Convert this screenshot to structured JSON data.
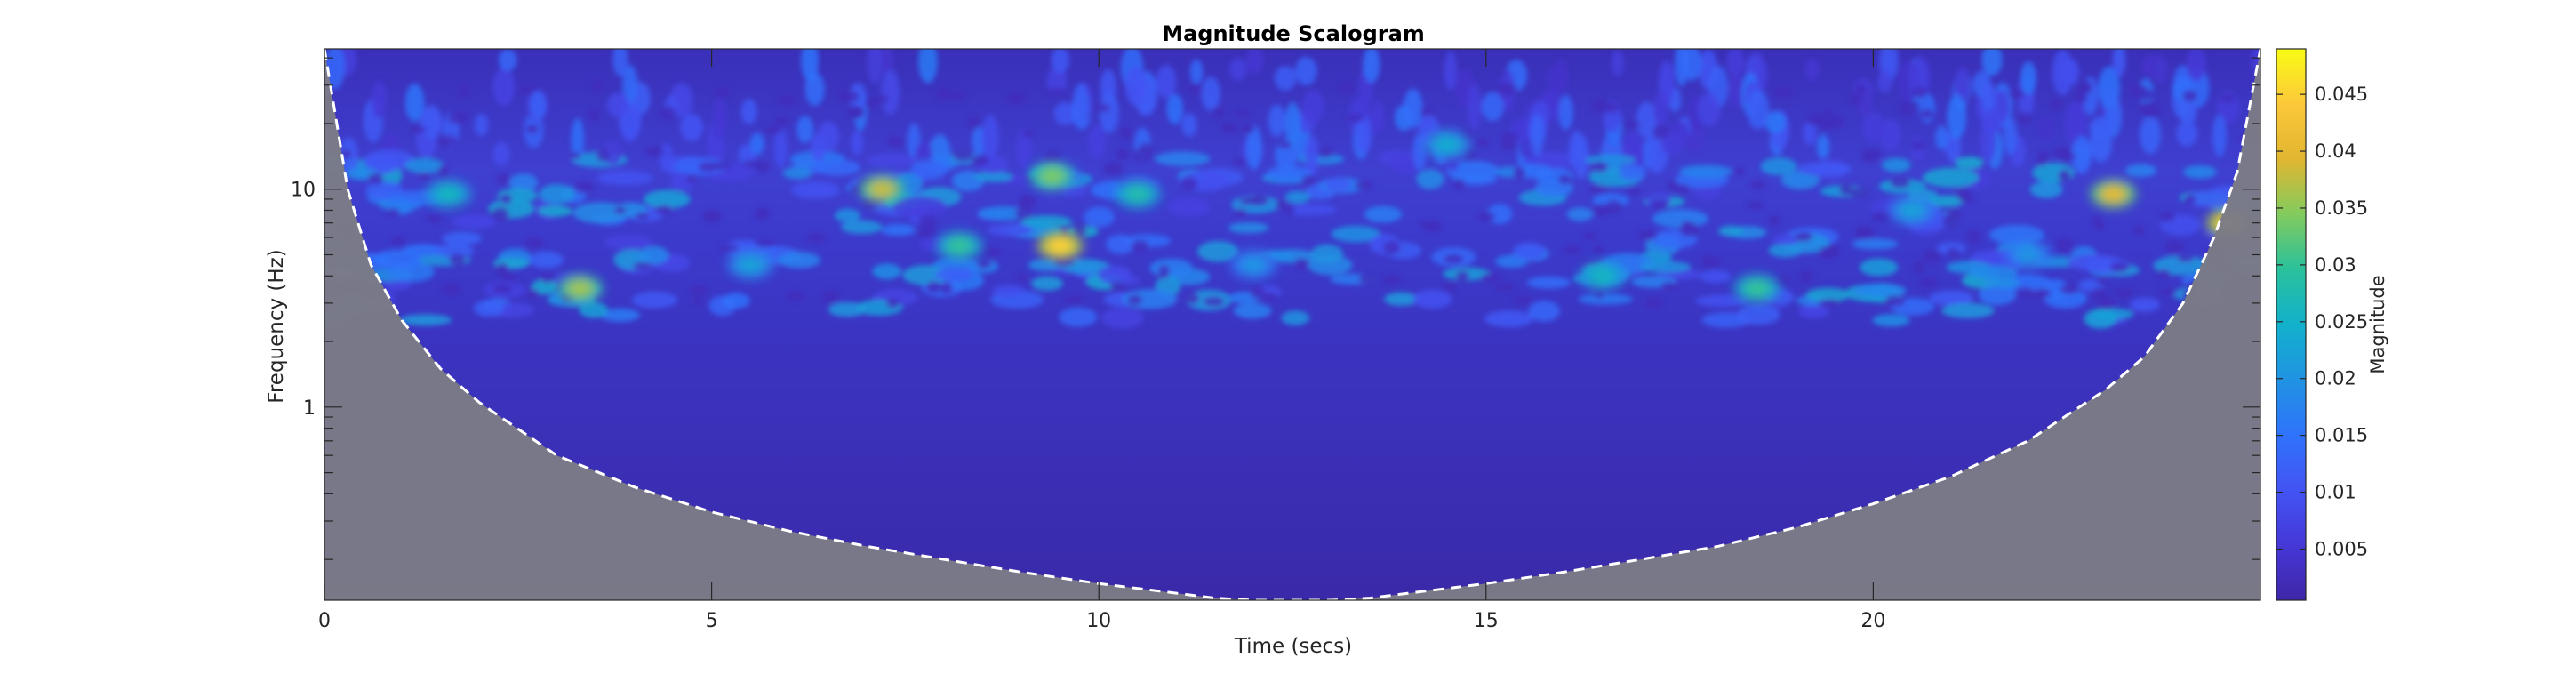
{
  "chart_data": {
    "type": "heatmap",
    "title": "Magnitude Scalogram",
    "xlabel": "Time (secs)",
    "ylabel": "Frequency (Hz)",
    "x_scale": "linear",
    "y_scale": "log",
    "xlim": [
      0,
      25
    ],
    "ylim": [
      0.13,
      44
    ],
    "x_ticks": [
      0,
      5,
      10,
      15,
      20
    ],
    "x_tick_labels": [
      "0",
      "5",
      "10",
      "15",
      "20"
    ],
    "y_ticks": [
      1,
      10
    ],
    "y_tick_labels": [
      "1",
      "10"
    ],
    "colorbar": {
      "label": "Magnitude",
      "range": [
        0.0005,
        0.049
      ],
      "ticks": [
        0.005,
        0.01,
        0.015,
        0.02,
        0.025,
        0.03,
        0.035,
        0.04,
        0.045
      ],
      "tick_labels": [
        "0.005",
        "0.01",
        "0.015",
        "0.02",
        "0.025",
        "0.03",
        "0.035",
        "0.04",
        "0.045"
      ],
      "colormap": "parula"
    },
    "cone_of_influence": {
      "style": "white dashed",
      "time": [
        0,
        0.3,
        0.6,
        1,
        1.5,
        2,
        3,
        4,
        5,
        6,
        7,
        8,
        9,
        10,
        11,
        11.5,
        12,
        13,
        13.5,
        14,
        15,
        16,
        17,
        18,
        19,
        20,
        21,
        22,
        23,
        23.5,
        24,
        24.4,
        24.7,
        25
      ],
      "frequency": [
        44,
        10,
        4.5,
        2.5,
        1.5,
        1.05,
        0.6,
        0.43,
        0.33,
        0.27,
        0.23,
        0.2,
        0.175,
        0.155,
        0.14,
        0.133,
        0.13,
        0.13,
        0.133,
        0.14,
        0.155,
        0.175,
        0.2,
        0.23,
        0.28,
        0.36,
        0.48,
        0.7,
        1.2,
        1.7,
        3,
        6,
        12,
        44
      ]
    },
    "hotspots": [
      {
        "time": 9.5,
        "frequency": 5.5,
        "magnitude": 0.045
      },
      {
        "time": 24.6,
        "frequency": 7.0,
        "magnitude": 0.045
      },
      {
        "time": 23.1,
        "frequency": 9.5,
        "magnitude": 0.04
      },
      {
        "time": 7.2,
        "frequency": 10.0,
        "magnitude": 0.038
      },
      {
        "time": 3.3,
        "frequency": 3.5,
        "magnitude": 0.036
      },
      {
        "time": 9.4,
        "frequency": 11.5,
        "magnitude": 0.034
      },
      {
        "time": 8.2,
        "frequency": 5.5,
        "magnitude": 0.03
      },
      {
        "time": 18.5,
        "frequency": 3.5,
        "magnitude": 0.03
      },
      {
        "time": 10.5,
        "frequency": 9.5,
        "magnitude": 0.028
      },
      {
        "time": 1.6,
        "frequency": 9.5,
        "magnitude": 0.026
      },
      {
        "time": 16.5,
        "frequency": 4.0,
        "magnitude": 0.026
      },
      {
        "time": 14.5,
        "frequency": 16.0,
        "magnitude": 0.024
      },
      {
        "time": 5.5,
        "frequency": 4.5,
        "magnitude": 0.022
      },
      {
        "time": 12.0,
        "frequency": 4.5,
        "magnitude": 0.02
      },
      {
        "time": 20.5,
        "frequency": 8.0,
        "magnitude": 0.022
      },
      {
        "time": 22.0,
        "frequency": 5.0,
        "magnitude": 0.02
      }
    ]
  }
}
